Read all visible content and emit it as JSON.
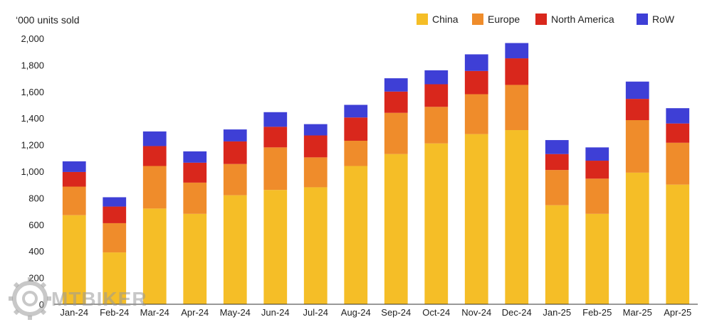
{
  "chart_data": {
    "type": "bar",
    "stacked": true,
    "ylabel": "‘000 units sold",
    "ylim": [
      0,
      2000
    ],
    "y_ticks": [
      "0",
      "200",
      "400",
      "600",
      "800",
      "1,000",
      "1,200",
      "1,400",
      "1,600",
      "1,800",
      "2,000"
    ],
    "y_tick_values": [
      0,
      200,
      400,
      600,
      800,
      1000,
      1200,
      1400,
      1600,
      1800,
      2000
    ],
    "grid": false,
    "legend_position": "top-right",
    "categories": [
      "Jan-24",
      "Feb-24",
      "Mar-24",
      "Apr-24",
      "May-24",
      "Jun-24",
      "Jul-24",
      "Aug-24",
      "Sep-24",
      "Oct-24",
      "Nov-24",
      "Dec-24",
      "Jan-25",
      "Feb-25",
      "Mar-25",
      "Apr-25"
    ],
    "series": [
      {
        "name": "China",
        "color": "#F5BE27",
        "values": [
          670,
          390,
          720,
          680,
          820,
          860,
          880,
          1040,
          1130,
          1210,
          1280,
          1310,
          745,
          680,
          990,
          900
        ]
      },
      {
        "name": "Europe",
        "color": "#EF8C2B",
        "values": [
          215,
          220,
          320,
          235,
          235,
          320,
          225,
          190,
          310,
          275,
          300,
          340,
          265,
          265,
          395,
          315
        ]
      },
      {
        "name": "North America",
        "color": "#D9271C",
        "values": [
          110,
          125,
          150,
          150,
          170,
          155,
          165,
          175,
          160,
          170,
          175,
          200,
          120,
          135,
          160,
          145
        ]
      },
      {
        "name": "RoW",
        "color": "#3E3FD6",
        "values": [
          80,
          70,
          110,
          85,
          90,
          110,
          85,
          95,
          100,
          105,
          125,
          115,
          105,
          100,
          130,
          115
        ]
      }
    ]
  },
  "watermark": {
    "text": "MTBIKER",
    "icon": "gear-icon"
  }
}
